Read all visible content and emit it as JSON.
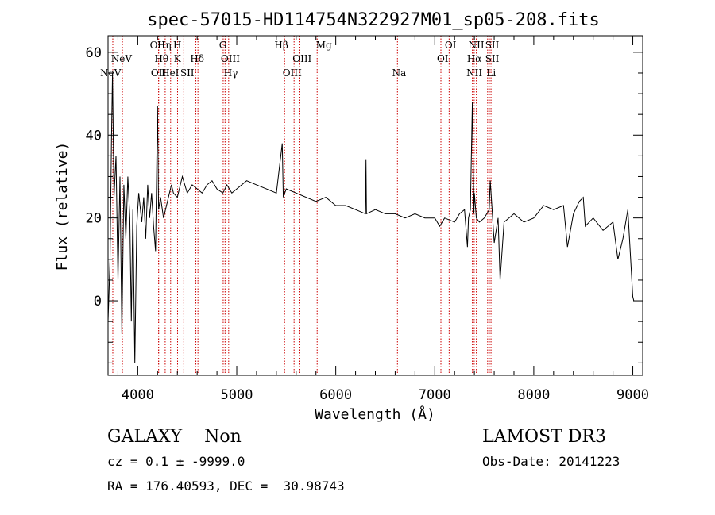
{
  "chart_data": {
    "type": "line",
    "title": "spec-57015-HD114754N322927M01_sp05-208.fits",
    "xlabel": "Wavelength (Å)",
    "ylabel": "Flux (relative)",
    "xlim": [
      3700,
      9100
    ],
    "ylim": [
      -18,
      64
    ],
    "xticks": [
      4000,
      5000,
      6000,
      7000,
      8000,
      9000
    ],
    "yticks": [
      0,
      20,
      40,
      60
    ],
    "series": [
      {
        "x": [
          3700,
          3720,
          3735,
          3745,
          3760,
          3780,
          3800,
          3820,
          3840,
          3860,
          3880,
          3900,
          3920,
          3935,
          3950,
          3970,
          3990,
          4010,
          4040,
          4060,
          4080,
          4100,
          4120,
          4140,
          4160,
          4180,
          4200,
          4210,
          4230,
          4260,
          4300,
          4340,
          4360,
          4400,
          4450,
          4500,
          4550,
          4600,
          4650,
          4700,
          4750,
          4800,
          4860,
          4900,
          4950,
          5000,
          5100,
          5200,
          5300,
          5400,
          5460,
          5470,
          5500,
          5600,
          5700,
          5800,
          5900,
          6000,
          6100,
          6200,
          6300,
          6305,
          6310,
          6400,
          6500,
          6600,
          6700,
          6800,
          6900,
          7000,
          7050,
          7100,
          7200,
          7250,
          7300,
          7330,
          7340,
          7360,
          7380,
          7395,
          7400,
          7420,
          7450,
          7500,
          7550,
          7560,
          7600,
          7640,
          7660,
          7700,
          7800,
          7900,
          8000,
          8100,
          8200,
          8300,
          8340,
          8400,
          8460,
          8500,
          8520,
          8600,
          8700,
          8800,
          8850,
          8900,
          8950,
          9000,
          9010
        ],
        "y": [
          -5,
          10,
          40,
          55,
          25,
          35,
          5,
          30,
          -8,
          28,
          15,
          30,
          20,
          -5,
          22,
          -15,
          18,
          26,
          19,
          25,
          15,
          28,
          20,
          26,
          18,
          12,
          47,
          22,
          25,
          20,
          24,
          28,
          26,
          25,
          30,
          26,
          28,
          27,
          26,
          28,
          29,
          27,
          26,
          28,
          26,
          27,
          29,
          28,
          27,
          26,
          38,
          25,
          27,
          26,
          25,
          24,
          25,
          23,
          23,
          22,
          21,
          34,
          21,
          22,
          21,
          21,
          20,
          21,
          20,
          20,
          18,
          20,
          19,
          21,
          22,
          13,
          20,
          22,
          48,
          21,
          26,
          20,
          19,
          20,
          22,
          29,
          14,
          20,
          5,
          19,
          21,
          19,
          20,
          23,
          22,
          23,
          13,
          21,
          24,
          25,
          18,
          20,
          17,
          19,
          10,
          15,
          22,
          1,
          0
        ]
      }
    ],
    "line_labels": [
      {
        "name": "NeV",
        "x": 3726,
        "row": 3
      },
      {
        "name": "NeV",
        "x": 3836,
        "row": 2
      },
      {
        "name": "OII",
        "x": 4200,
        "row": 0
      },
      {
        "name": "OII",
        "x": 4210,
        "row": 3
      },
      {
        "name": "Hη",
        "x": 4268,
        "row": 0
      },
      {
        "name": "Hθ",
        "x": 4240,
        "row": 2
      },
      {
        "name": "HeI",
        "x": 4328,
        "row": 3
      },
      {
        "name": "H",
        "x": 4400,
        "row": 0
      },
      {
        "name": "K",
        "x": 4400,
        "row": 2
      },
      {
        "name": "SII",
        "x": 4500,
        "row": 3
      },
      {
        "name": "Hδ",
        "x": 4600,
        "row": 2
      },
      {
        "name": "G",
        "x": 4860,
        "row": 0
      },
      {
        "name": "OIII",
        "x": 4935,
        "row": 2
      },
      {
        "name": "Hγ",
        "x": 4940,
        "row": 3
      },
      {
        "name": "Hβ",
        "x": 5450,
        "row": 0
      },
      {
        "name": "OIII",
        "x": 5660,
        "row": 2
      },
      {
        "name": "OIII",
        "x": 5560,
        "row": 3
      },
      {
        "name": "Mg",
        "x": 5880,
        "row": 0
      },
      {
        "name": "Na",
        "x": 6640,
        "row": 3
      },
      {
        "name": "OI",
        "x": 7160,
        "row": 0
      },
      {
        "name": "OI",
        "x": 7080,
        "row": 2
      },
      {
        "name": "NII",
        "x": 7420,
        "row": 0
      },
      {
        "name": "SII",
        "x": 7580,
        "row": 0
      },
      {
        "name": "Hα",
        "x": 7400,
        "row": 2
      },
      {
        "name": "SII",
        "x": 7580,
        "row": 2
      },
      {
        "name": "NII",
        "x": 7400,
        "row": 3
      },
      {
        "name": "Li",
        "x": 7570,
        "row": 3
      }
    ],
    "line_positions": [
      3748,
      3845,
      4210,
      4224,
      4277,
      4332,
      4402,
      4465,
      4587,
      4608,
      4863,
      4882,
      4918,
      5483,
      5579,
      5630,
      5812,
      6623,
      7062,
      7145,
      7380,
      7398,
      7420,
      7534,
      7551,
      7568
    ]
  },
  "info": {
    "class_line": "GALAXY    Non",
    "cz_line": "cz = 0.1 ± -9999.0",
    "radec_line": "RA = 176.40593, DEC =  30.98743",
    "survey": "LAMOST DR3",
    "obs_date": "Obs-Date: 20141223"
  }
}
